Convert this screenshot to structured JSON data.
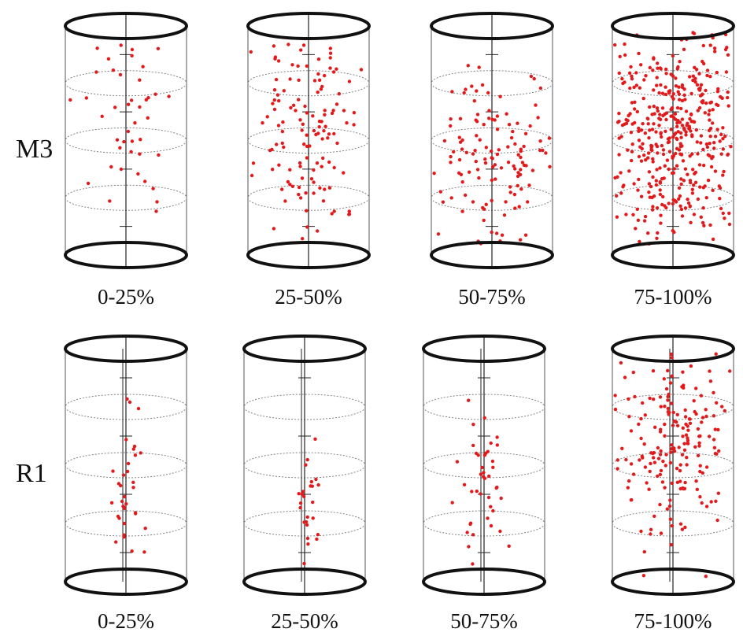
{
  "rows": [
    {
      "label": "M3",
      "panels": [
        {
          "stage": "0-25%",
          "event_density": 0.1
        },
        {
          "stage": "25-50%",
          "event_density": 0.3
        },
        {
          "stage": "50-75%",
          "event_density": 0.3
        },
        {
          "stage": "75-100%",
          "event_density": 1.0
        }
      ]
    },
    {
      "label": "R1",
      "panels": [
        {
          "stage": "0-25%",
          "event_density": 0.08
        },
        {
          "stage": "25-50%",
          "event_density": 0.06
        },
        {
          "stage": "50-75%",
          "event_density": 0.1
        },
        {
          "stage": "75-100%",
          "event_density": 0.45
        }
      ]
    }
  ],
  "colors": {
    "event": "#e31a1c",
    "outline": "#111111",
    "grid": "#777777"
  }
}
